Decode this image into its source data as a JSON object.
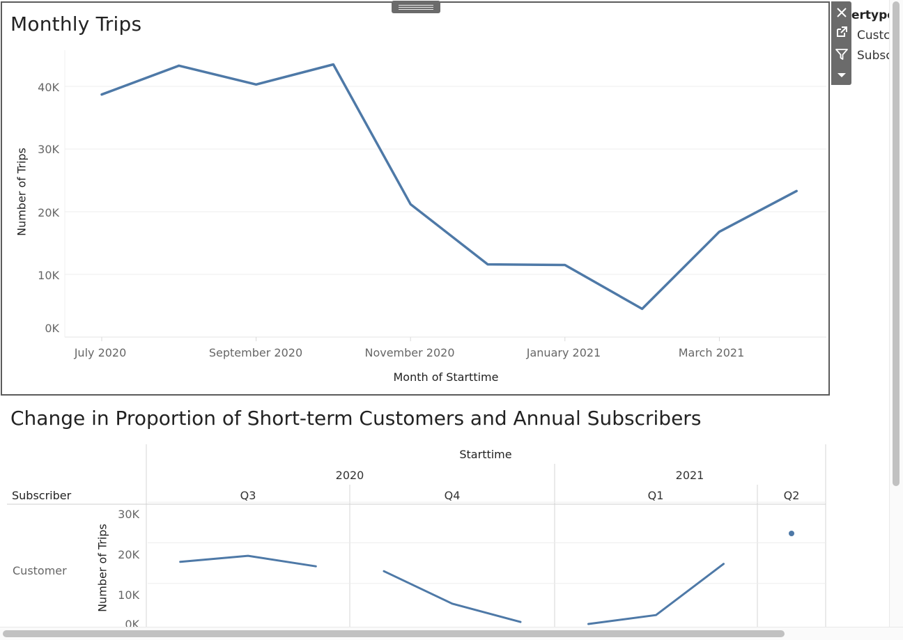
{
  "top_chart": {
    "title": "Monthly Trips",
    "chart_data": {
      "type": "line",
      "title": "Monthly Trips",
      "xlabel": "Month of Starttime",
      "ylabel": "Number of Trips",
      "x": [
        "2020-07",
        "2020-08",
        "2020-09",
        "2020-10",
        "2020-11",
        "2020-12",
        "2021-01",
        "2021-02",
        "2021-03",
        "2021-04"
      ],
      "x_tick_labels": [
        "July 2020",
        "September 2020",
        "November 2020",
        "January 2021",
        "March 2021"
      ],
      "y_tick_labels": [
        "0K",
        "10K",
        "20K",
        "30K",
        "40K"
      ],
      "ylim": [
        0,
        46000
      ],
      "series": [
        {
          "values": [
            38700,
            43300,
            40300,
            43500,
            21200,
            11600,
            11500,
            4500,
            16800,
            23300
          ]
        }
      ],
      "color": "#4e79a7",
      "grid": true
    }
  },
  "toolbar": {
    "icons": [
      "close-icon",
      "popout-icon",
      "filter-icon",
      "dropdown-icon"
    ]
  },
  "legend_peek": {
    "title": "ertype",
    "items": [
      "Custc",
      "Subsc"
    ]
  },
  "bottom_chart": {
    "title": "Change in Proportion of Short-term Customers and Annual Subscribers",
    "column_header": "Starttime",
    "years": [
      "2020",
      "2021"
    ],
    "quarters": [
      "Q3",
      "Q4",
      "Q1",
      "Q2"
    ],
    "row_header": "Subscriber",
    "row_label": "Customer",
    "chart_data": {
      "type": "line",
      "ylabel": "Number of Trips",
      "y_tick_labels": [
        "0K",
        "10K",
        "20K",
        "30K"
      ],
      "ylim": [
        0,
        30000
      ],
      "panels": [
        {
          "quarter": "Q3",
          "year": "2020",
          "x": [
            "Jul",
            "Aug",
            "Sep"
          ],
          "values": [
            15300,
            16800,
            14200
          ]
        },
        {
          "quarter": "Q4",
          "year": "2020",
          "x": [
            "Oct",
            "Nov",
            "Dec"
          ],
          "values": [
            13000,
            5000,
            500
          ]
        },
        {
          "quarter": "Q1",
          "year": "2021",
          "x": [
            "Jan",
            "Feb",
            "Mar"
          ],
          "values": [
            0,
            2200,
            14800
          ]
        },
        {
          "quarter": "Q2",
          "year": "2021",
          "x": [
            "Apr"
          ],
          "values": [
            22300
          ]
        }
      ],
      "color": "#4e79a7"
    }
  }
}
